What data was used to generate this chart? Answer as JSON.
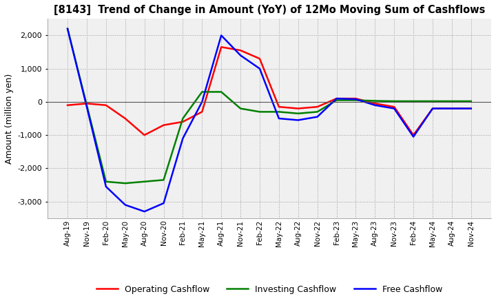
{
  "title": "[8143]  Trend of Change in Amount (YoY) of 12Mo Moving Sum of Cashflows",
  "ylabel": "Amount (million yen)",
  "x_labels": [
    "Aug-19",
    "Nov-19",
    "Feb-20",
    "May-20",
    "Aug-20",
    "Nov-20",
    "Feb-21",
    "May-21",
    "Aug-21",
    "Nov-21",
    "Feb-22",
    "May-22",
    "Aug-22",
    "Nov-22",
    "Feb-23",
    "May-23",
    "Aug-23",
    "Nov-23",
    "Feb-24",
    "May-24",
    "Aug-24",
    "Nov-24"
  ],
  "operating": [
    -100,
    -50,
    -100,
    -500,
    -1000,
    -700,
    -600,
    -300,
    1650,
    1550,
    1300,
    -150,
    -200,
    -150,
    100,
    100,
    -50,
    -150,
    -1000,
    -200,
    -200,
    -200
  ],
  "investing": [
    2200,
    -100,
    -2400,
    -2450,
    -2400,
    -2350,
    -500,
    300,
    300,
    -200,
    -300,
    -300,
    -350,
    -300,
    50,
    50,
    30,
    20,
    20,
    20,
    20,
    20
  ],
  "free": [
    2200,
    -150,
    -2550,
    -3100,
    -3300,
    -3050,
    -1100,
    0,
    2000,
    1400,
    1000,
    -500,
    -550,
    -450,
    100,
    80,
    -100,
    -200,
    -1050,
    -200,
    -200,
    -200
  ],
  "ylim": [
    -3500,
    2500
  ],
  "yticks": [
    -3000,
    -2000,
    -1000,
    0,
    1000,
    2000
  ],
  "operating_color": "#ff0000",
  "investing_color": "#008000",
  "free_color": "#0000ff",
  "background_color": "#ffffff",
  "plot_bg_color": "#f0f0f0",
  "grid_color": "#999999",
  "legend_labels": [
    "Operating Cashflow",
    "Investing Cashflow",
    "Free Cashflow"
  ],
  "line_width": 1.8
}
